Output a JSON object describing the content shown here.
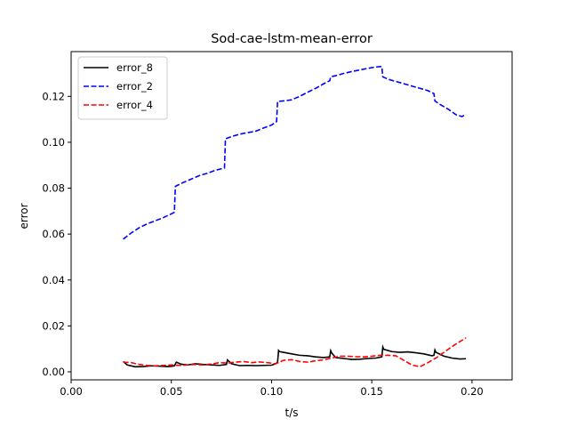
{
  "chart_data": {
    "type": "line",
    "title": "Sod-cae-lstm-mean-error",
    "xlabel": "t/s",
    "ylabel": "error",
    "xlim": [
      0.0,
      0.22
    ],
    "ylim": [
      -0.0035,
      0.1395
    ],
    "xticks": [
      0.0,
      0.05,
      0.1,
      0.15,
      0.2
    ],
    "xtick_labels": [
      "0.00",
      "0.05",
      "0.10",
      "0.15",
      "0.20"
    ],
    "yticks": [
      0.0,
      0.02,
      0.04,
      0.06,
      0.08,
      0.1,
      0.12
    ],
    "ytick_labels": [
      "0.00",
      "0.02",
      "0.04",
      "0.06",
      "0.08",
      "0.10",
      "0.12"
    ],
    "grid": false,
    "legend_position": "top-left",
    "series": [
      {
        "name": "error_8",
        "color": "#000000",
        "dash": "solid",
        "x": [
          0.026,
          0.028,
          0.032,
          0.036,
          0.04,
          0.044,
          0.048,
          0.05,
          0.0515,
          0.0525,
          0.055,
          0.058,
          0.062,
          0.066,
          0.07,
          0.074,
          0.0775,
          0.078,
          0.08,
          0.084,
          0.088,
          0.092,
          0.096,
          0.1,
          0.102,
          0.103,
          0.1035,
          0.104,
          0.106,
          0.11,
          0.114,
          0.118,
          0.122,
          0.126,
          0.129,
          0.1295,
          0.13,
          0.132,
          0.136,
          0.14,
          0.144,
          0.148,
          0.152,
          0.155,
          0.1555,
          0.156,
          0.16,
          0.164,
          0.168,
          0.172,
          0.176,
          0.18,
          0.181,
          0.1815,
          0.182,
          0.186,
          0.19,
          0.194,
          0.197
        ],
        "values": [
          0.0045,
          0.003,
          0.0022,
          0.0023,
          0.0026,
          0.0025,
          0.0023,
          0.0024,
          0.0026,
          0.0042,
          0.0033,
          0.003,
          0.0035,
          0.0032,
          0.003,
          0.0028,
          0.0032,
          0.0052,
          0.0035,
          0.0027,
          0.0028,
          0.0027,
          0.0028,
          0.0029,
          0.0035,
          0.0042,
          0.0093,
          0.0088,
          0.0085,
          0.0078,
          0.0072,
          0.007,
          0.0065,
          0.0062,
          0.0065,
          0.0092,
          0.0082,
          0.0062,
          0.0058,
          0.0054,
          0.0055,
          0.0058,
          0.006,
          0.0065,
          0.0108,
          0.0098,
          0.0088,
          0.0085,
          0.0087,
          0.0083,
          0.0078,
          0.007,
          0.0072,
          0.0095,
          0.0085,
          0.0068,
          0.006,
          0.0056,
          0.0057
        ]
      },
      {
        "name": "error_2",
        "color": "#0000ff",
        "dash": "dashed",
        "x": [
          0.026,
          0.03,
          0.034,
          0.038,
          0.042,
          0.046,
          0.05,
          0.0515,
          0.052,
          0.056,
          0.06,
          0.064,
          0.068,
          0.072,
          0.0765,
          0.077,
          0.08,
          0.084,
          0.088,
          0.092,
          0.096,
          0.1,
          0.1025,
          0.103,
          0.106,
          0.11,
          0.114,
          0.118,
          0.122,
          0.126,
          0.129,
          0.1295,
          0.132,
          0.136,
          0.14,
          0.144,
          0.148,
          0.152,
          0.155,
          0.1555,
          0.158,
          0.162,
          0.166,
          0.17,
          0.174,
          0.178,
          0.181,
          0.1815,
          0.184,
          0.188,
          0.192,
          0.195,
          0.197
        ],
        "values": [
          0.0578,
          0.0605,
          0.0628,
          0.0645,
          0.0658,
          0.0672,
          0.0688,
          0.0695,
          0.0808,
          0.0825,
          0.084,
          0.0855,
          0.0865,
          0.0878,
          0.0888,
          0.1015,
          0.1025,
          0.1035,
          0.1042,
          0.1048,
          0.1062,
          0.1075,
          0.109,
          0.1178,
          0.118,
          0.1185,
          0.12,
          0.1218,
          0.1235,
          0.1255,
          0.1268,
          0.1285,
          0.129,
          0.13,
          0.1308,
          0.1315,
          0.1322,
          0.1328,
          0.133,
          0.1285,
          0.1275,
          0.1265,
          0.1255,
          0.1245,
          0.1235,
          0.1225,
          0.1212,
          0.118,
          0.1165,
          0.1145,
          0.112,
          0.1112,
          0.1122
        ]
      },
      {
        "name": "error_4",
        "color": "#ff0000",
        "dash": "dashed",
        "x": [
          0.026,
          0.03,
          0.034,
          0.038,
          0.042,
          0.046,
          0.05,
          0.054,
          0.058,
          0.062,
          0.066,
          0.07,
          0.074,
          0.078,
          0.082,
          0.086,
          0.09,
          0.094,
          0.098,
          0.102,
          0.106,
          0.11,
          0.114,
          0.118,
          0.122,
          0.126,
          0.13,
          0.134,
          0.138,
          0.142,
          0.146,
          0.15,
          0.154,
          0.158,
          0.162,
          0.166,
          0.17,
          0.174,
          0.178,
          0.182,
          0.186,
          0.19,
          0.194,
          0.197
        ],
        "values": [
          0.0042,
          0.004,
          0.0032,
          0.0028,
          0.0026,
          0.0028,
          0.003,
          0.0028,
          0.003,
          0.0032,
          0.003,
          0.0034,
          0.004,
          0.0038,
          0.0042,
          0.0045,
          0.004,
          0.0043,
          0.004,
          0.0035,
          0.005,
          0.0053,
          0.0045,
          0.0042,
          0.0048,
          0.0052,
          0.006,
          0.0068,
          0.0068,
          0.0066,
          0.0065,
          0.0068,
          0.0072,
          0.0072,
          0.007,
          0.005,
          0.003,
          0.0022,
          0.004,
          0.006,
          0.0085,
          0.011,
          0.0132,
          0.0148
        ]
      }
    ]
  }
}
